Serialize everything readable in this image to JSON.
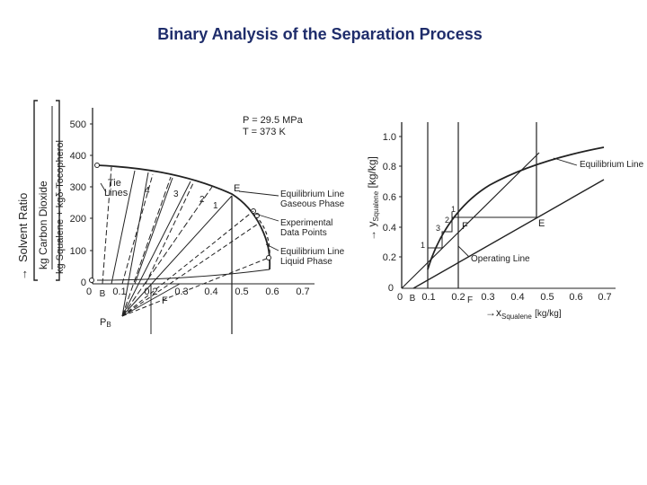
{
  "slide": {
    "title": "Binary Analysis of the Separation Process",
    "title_color": "#1f2d6b"
  },
  "left_diagram": {
    "ylabel_arrow": "→",
    "ylabel_text": "Solvent Ratio",
    "ylabel_num": "kg Carbon Dioxide",
    "ylabel_den": "kg Squalene + kgδ-Tocopherol",
    "yticks": [
      "500",
      "400",
      "300",
      "200",
      "100",
      "0"
    ],
    "xticks": [
      "0",
      "B",
      "0.1",
      "0.2",
      "0.3",
      "0.4",
      "0.5",
      "0.6",
      "0.7"
    ],
    "labels": {
      "pressure": "P = 29.5 MPa",
      "temperature": "T = 373 K",
      "tie_lines": [
        "Tie",
        "Lines"
      ],
      "E": "E",
      "F": "F",
      "PB": "P",
      "PB_sub": "B",
      "stage_4": "4",
      "stage_3": "3",
      "stage_2": "2",
      "stage_1": "1"
    },
    "legend": [
      [
        "Equilibrium Line",
        "Gaseous Phase"
      ],
      [
        "Experimental",
        "Data Points"
      ],
      [
        "Equilibrium Line",
        "Liquid Phase"
      ]
    ]
  },
  "right_diagram": {
    "ylabel_arrow": "→",
    "ylabel_var": "y",
    "ylabel_sub": "Squalene",
    "ylabel_unit": "[kg/kg]",
    "xlabel_arrow": "→",
    "xlabel_var": "x",
    "xlabel_sub": "Squalene",
    "xlabel_unit": "[kg/kg]",
    "yticks": [
      "1.0",
      "0.8",
      "0.6",
      "0.4",
      "0.2",
      "0"
    ],
    "xticks": [
      "0",
      "B",
      "0.1",
      "0.2",
      "0.3",
      "0.4",
      "0.5",
      "0.6",
      "0.7"
    ],
    "labels": {
      "equilibrium": "Equilibrium Line",
      "operating": "Operating Line",
      "E": "E",
      "F_upper": "F",
      "F_axis": "F",
      "stage_1a": "1",
      "stage_2": "2",
      "stage_3": "3",
      "stage_1b": "1"
    }
  }
}
